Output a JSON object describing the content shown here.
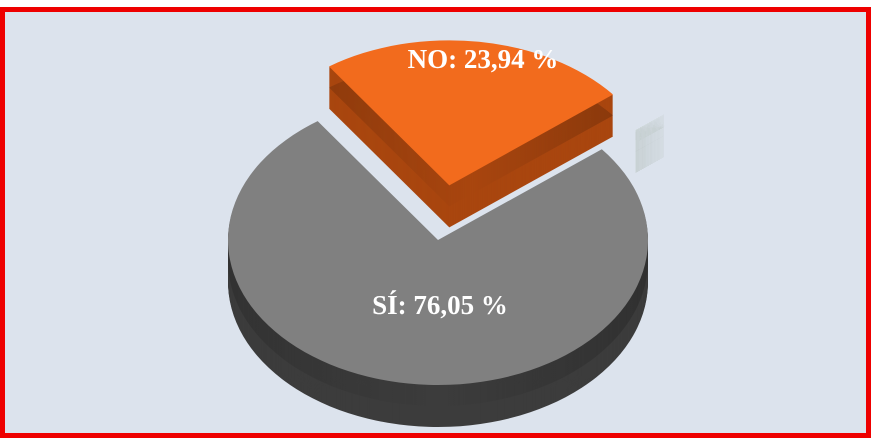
{
  "chart_data": {
    "type": "pie",
    "values": [
      76.05,
      23.94,
      0.01
    ],
    "value_labels": [
      "SÍ: 76,05 %",
      "NO: 23,94 %",
      null
    ],
    "colors": [
      "#808080",
      "#f26b1d",
      "#5c7a34"
    ],
    "side_colors": [
      "#3c3c3c",
      "#a9460f",
      "#3f5424"
    ]
  }
}
